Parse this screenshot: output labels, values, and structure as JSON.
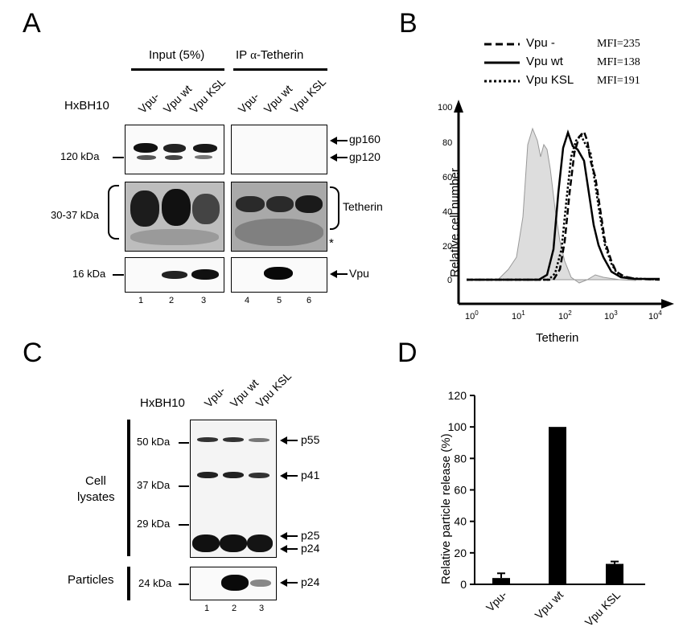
{
  "panelA": {
    "label": "A",
    "header_input": "Input (5%)",
    "header_ip": "IP α-Tetherin",
    "header_ip_prefix": "IP ",
    "header_ip_symbol": "α",
    "header_ip_suffix": "-Tetherin",
    "construct": "HxBH10",
    "lanes_input": [
      "Vpu-",
      "Vpu wt",
      "Vpu KSL"
    ],
    "lanes_ip": [
      "Vpu-",
      "Vpu wt",
      "Vpu KSL"
    ],
    "mw_120": "120 kDa",
    "mw_30_37": "30-37 kDa",
    "mw_16": "16 kDa",
    "band_gp160": "gp160",
    "band_gp120": "gp120",
    "band_tetherin": "Tetherin",
    "band_vpu": "Vpu",
    "asterisk": "*",
    "lane_numbers": [
      "1",
      "2",
      "3",
      "4",
      "5",
      "6"
    ]
  },
  "panelB": {
    "label": "B",
    "legend": [
      {
        "name": "Vpu -",
        "mfi": "MFI=235",
        "style": "dashed"
      },
      {
        "name": "Vpu wt",
        "mfi": "MFI=138",
        "style": "solid"
      },
      {
        "name": "Vpu KSL",
        "mfi": "MFI=191",
        "style": "dotted"
      }
    ],
    "ylabel": "Relative cell number",
    "xlabel": "Tetherin",
    "yticks": [
      "100",
      "80",
      "60",
      "40",
      "20",
      "0"
    ],
    "xticks": [
      {
        "base": "10",
        "exp": "0"
      },
      {
        "base": "10",
        "exp": "1"
      },
      {
        "base": "10",
        "exp": "2"
      },
      {
        "base": "10",
        "exp": "3"
      },
      {
        "base": "10",
        "exp": "4"
      }
    ]
  },
  "panelC": {
    "label": "C",
    "construct": "HxBH10",
    "lanes": [
      "Vpu-",
      "Vpu wt",
      "Vpu KSL"
    ],
    "group_cell": "Cell\nlysates",
    "group_cell_line1": "Cell",
    "group_cell_line2": "lysates",
    "group_particles": "Particles",
    "mw_50": "50 kDa",
    "mw_37": "37 kDa",
    "mw_29": "29 kDa",
    "mw_24": "24 kDa",
    "band_p55": "p55",
    "band_p41": "p41",
    "band_p25": "p25",
    "band_p24": "p24",
    "band_p24_particles": "p24",
    "lane_numbers": [
      "1",
      "2",
      "3"
    ]
  },
  "chart_data": {
    "type": "bar",
    "panel_label": "D",
    "categories": [
      "Vpu-",
      "Vpu wt",
      "Vpu KSL"
    ],
    "values": [
      4,
      100,
      13
    ],
    "errors": [
      3,
      0,
      1.5
    ],
    "ylabel": "Relative particle release (%)",
    "xlabel": "",
    "ylim": [
      0,
      120
    ],
    "yticks": [
      "0",
      "20",
      "40",
      "60",
      "80",
      "100",
      "120"
    ],
    "grid": false,
    "bar_color": "#000000"
  }
}
